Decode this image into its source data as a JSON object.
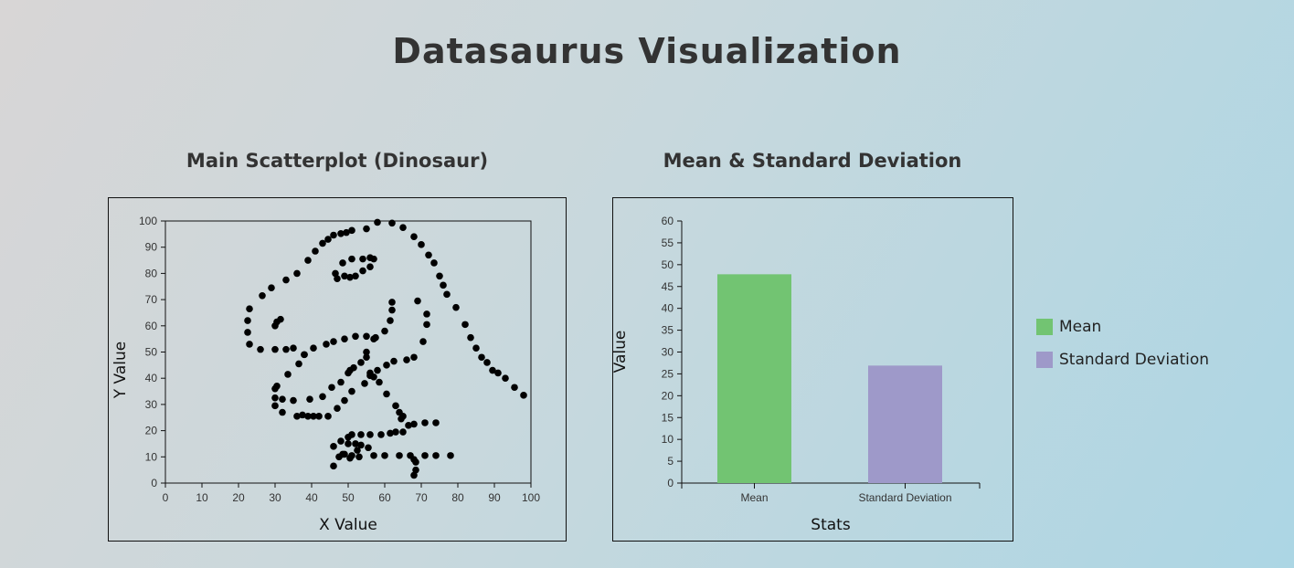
{
  "page": {
    "title": "Datasaurus Visualization"
  },
  "scatter": {
    "title": "Main Scatterplot (Dinosaur)"
  },
  "bars": {
    "title": "Mean & Standard Deviation"
  },
  "colors": {
    "point": "#000000",
    "mean": "#72c472",
    "std": "#9e99c9"
  },
  "chart_data": [
    {
      "type": "scatter",
      "title": "Main Scatterplot (Dinosaur)",
      "xlabel": "X Value",
      "ylabel": "Y Value",
      "xlim": [
        0,
        100
      ],
      "ylim": [
        0,
        100
      ],
      "xticks": [
        "0",
        "10",
        "20",
        "30",
        "40",
        "50",
        "60",
        "70",
        "80",
        "90",
        "100"
      ],
      "yticks": [
        "0",
        "10",
        "20",
        "30",
        "40",
        "50",
        "60",
        "70",
        "80",
        "90",
        "100"
      ],
      "grid": false,
      "points": [
        [
          58,
          99.5
        ],
        [
          62,
          99.2
        ],
        [
          65,
          97.5
        ],
        [
          55,
          97
        ],
        [
          51,
          96.4
        ],
        [
          49.5,
          95.6
        ],
        [
          48,
          95.2
        ],
        [
          46,
          94.6
        ],
        [
          44.5,
          93
        ],
        [
          43,
          91.5
        ],
        [
          41,
          88.5
        ],
        [
          39,
          85
        ],
        [
          36,
          80
        ],
        [
          33,
          77.5
        ],
        [
          29,
          74.5
        ],
        [
          26.5,
          71.5
        ],
        [
          23,
          66.5
        ],
        [
          22.5,
          62
        ],
        [
          22.5,
          57.5
        ],
        [
          23,
          53
        ],
        [
          26,
          51
        ],
        [
          30,
          51
        ],
        [
          33,
          51
        ],
        [
          35,
          51.5
        ],
        [
          38,
          49
        ],
        [
          40.5,
          51.5
        ],
        [
          44,
          53
        ],
        [
          46,
          54
        ],
        [
          49,
          55
        ],
        [
          52,
          56
        ],
        [
          55,
          56
        ],
        [
          57,
          55
        ],
        [
          57.5,
          55.5
        ],
        [
          60,
          58
        ],
        [
          61.5,
          62
        ],
        [
          62,
          66
        ],
        [
          62,
          69
        ],
        [
          30.5,
          61.5
        ],
        [
          31.5,
          62.5
        ],
        [
          30,
          60
        ],
        [
          46.5,
          80
        ],
        [
          47,
          78
        ],
        [
          49,
          79
        ],
        [
          50.5,
          78.5
        ],
        [
          52,
          79
        ],
        [
          54,
          81
        ],
        [
          56,
          82.5
        ],
        [
          56,
          86
        ],
        [
          57,
          85.5
        ],
        [
          54,
          85.5
        ],
        [
          51,
          85.5
        ],
        [
          48.5,
          84
        ],
        [
          68,
          94
        ],
        [
          70,
          91
        ],
        [
          72,
          87
        ],
        [
          73.5,
          84
        ],
        [
          75,
          79
        ],
        [
          76,
          75.5
        ],
        [
          77,
          72
        ],
        [
          79.5,
          67
        ],
        [
          82,
          60.5
        ],
        [
          83.5,
          55.5
        ],
        [
          85,
          51.5
        ],
        [
          86.5,
          48
        ],
        [
          88,
          46
        ],
        [
          89.5,
          43
        ],
        [
          91,
          42
        ],
        [
          93,
          40
        ],
        [
          95.5,
          36.5
        ],
        [
          98,
          33.5
        ],
        [
          69,
          69.5
        ],
        [
          71.5,
          64.5
        ],
        [
          71.5,
          60.5
        ],
        [
          70.5,
          54
        ],
        [
          68,
          48
        ],
        [
          66,
          47
        ],
        [
          62.5,
          46.5
        ],
        [
          60.5,
          45
        ],
        [
          58,
          43
        ],
        [
          56,
          41
        ],
        [
          54.5,
          38
        ],
        [
          51,
          35
        ],
        [
          49,
          31.5
        ],
        [
          47,
          28.5
        ],
        [
          44.5,
          25.5
        ],
        [
          42,
          25.5
        ],
        [
          40.5,
          25.5
        ],
        [
          39,
          25.5
        ],
        [
          37.5,
          26
        ],
        [
          36,
          25.5
        ],
        [
          32,
          27
        ],
        [
          30,
          29.5
        ],
        [
          30,
          32.5
        ],
        [
          30,
          36
        ],
        [
          30.5,
          37
        ],
        [
          33.5,
          41.5
        ],
        [
          36.5,
          45.5
        ],
        [
          38,
          49
        ],
        [
          32,
          32
        ],
        [
          35,
          31.5
        ],
        [
          39.5,
          32
        ],
        [
          43,
          33
        ],
        [
          45.5,
          36.5
        ],
        [
          48,
          38.5
        ],
        [
          50,
          42
        ],
        [
          50.5,
          43
        ],
        [
          51.5,
          44
        ],
        [
          53.5,
          46
        ],
        [
          55,
          48
        ],
        [
          55,
          50
        ],
        [
          56,
          42
        ],
        [
          57,
          40.5
        ],
        [
          58.5,
          38.5
        ],
        [
          60.5,
          34
        ],
        [
          63,
          29.5
        ],
        [
          64,
          27
        ],
        [
          64.5,
          24.5
        ],
        [
          65,
          25.5
        ],
        [
          66.5,
          22
        ],
        [
          68,
          22.5
        ],
        [
          71,
          23
        ],
        [
          74,
          23
        ],
        [
          65,
          19.5
        ],
        [
          63,
          19.5
        ],
        [
          61.5,
          19
        ],
        [
          59,
          18.5
        ],
        [
          56,
          18.5
        ],
        [
          53.5,
          18.5
        ],
        [
          51,
          18.5
        ],
        [
          50,
          17.5
        ],
        [
          48,
          16
        ],
        [
          46,
          14
        ],
        [
          50,
          15
        ],
        [
          52,
          15
        ],
        [
          53.5,
          14.5
        ],
        [
          55.5,
          13.5
        ],
        [
          52.5,
          12.5
        ],
        [
          51,
          10.5
        ],
        [
          49,
          11
        ],
        [
          48.5,
          11
        ],
        [
          47.5,
          10
        ],
        [
          46,
          6.5
        ],
        [
          50.5,
          9.5
        ],
        [
          53,
          10
        ],
        [
          57,
          10.5
        ],
        [
          60,
          10.5
        ],
        [
          64,
          10.5
        ],
        [
          67,
          10.5
        ],
        [
          68,
          9
        ],
        [
          68.5,
          8
        ],
        [
          68.5,
          5
        ],
        [
          68,
          3
        ],
        [
          71,
          10.5
        ],
        [
          74,
          10.5
        ],
        [
          78,
          10.5
        ]
      ]
    },
    {
      "type": "bar",
      "title": "Mean & Standard Deviation",
      "xlabel": "Stats",
      "ylabel": "Value",
      "ylim": [
        0,
        60
      ],
      "yticks": [
        "0",
        "5",
        "10",
        "15",
        "20",
        "25",
        "30",
        "35",
        "40",
        "45",
        "50",
        "55",
        "60"
      ],
      "categories": [
        "Mean",
        "Standard Deviation"
      ],
      "values": [
        47.8,
        26.9
      ],
      "legend": {
        "position": "right",
        "entries": [
          "Mean",
          "Standard Deviation"
        ]
      }
    }
  ]
}
